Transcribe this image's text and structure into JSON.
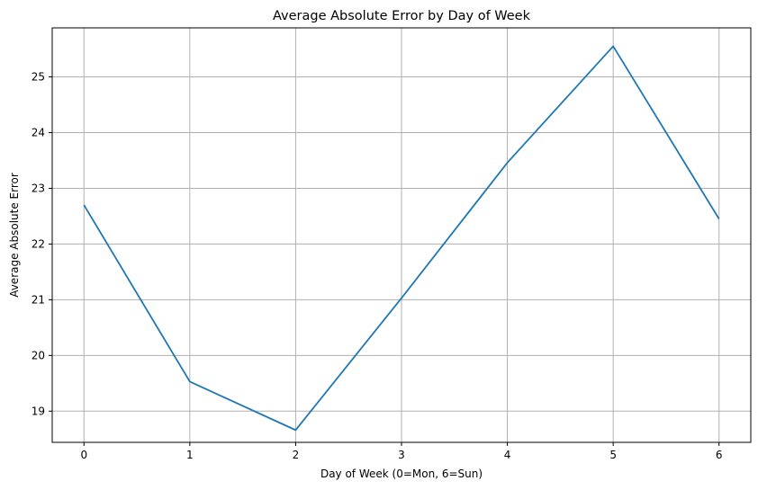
{
  "chart_data": {
    "type": "line",
    "title": "Average Absolute Error by Day of Week",
    "xlabel": "Day of Week (0=Mon, 6=Sun)",
    "ylabel": "Average Absolute Error",
    "x": [
      0,
      1,
      2,
      3,
      4,
      5,
      6
    ],
    "series": [
      {
        "values": [
          22.7,
          19.53,
          18.66,
          21.03,
          23.46,
          25.55,
          22.45
        ],
        "color": "#1f77b4"
      }
    ],
    "xlim": [
      -0.3,
      6.3
    ],
    "ylim": [
      18.44,
      25.88
    ],
    "xticks": [
      0,
      1,
      2,
      3,
      4,
      5,
      6
    ],
    "yticks": [
      19,
      20,
      21,
      22,
      23,
      24,
      25
    ],
    "grid": true,
    "grid_color": "#b0b0b0"
  }
}
